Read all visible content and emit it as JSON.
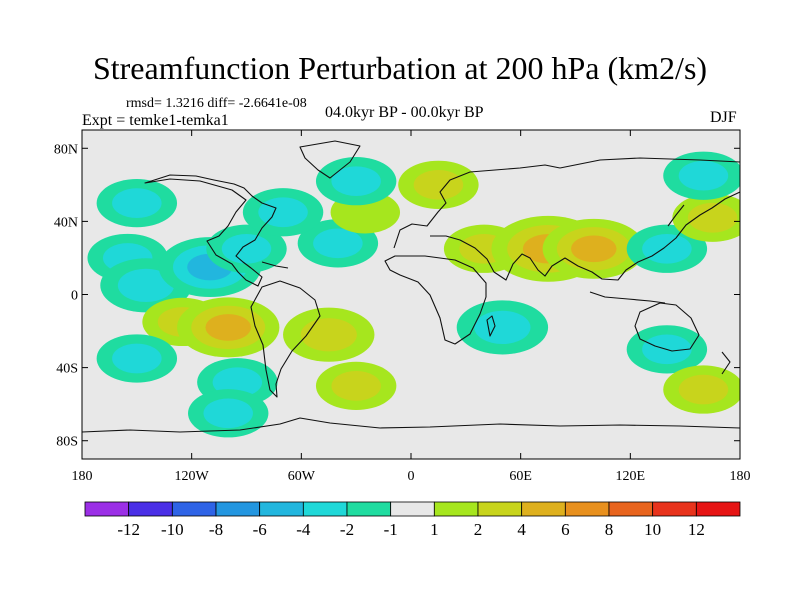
{
  "figure": {
    "title": "Streamfunction Perturbation at 200 hPa (km2/s)",
    "stats_text": "rmsd= 1.3216  diff= -2.6641e-08",
    "experiment_text": "Expt = temke1-temka1",
    "period_text": "04.0kyr BP - 00.0kyr BP",
    "season_text": "DJF"
  },
  "chart_data": {
    "type": "heatmap",
    "title": "Streamfunction Perturbation at 200 hPa (km2/s)",
    "projection": "cylindrical equidistant",
    "lon_range": [
      -180,
      180
    ],
    "lat_range": [
      -90,
      90
    ],
    "xticks": [
      {
        "value": -180,
        "label": "180"
      },
      {
        "value": -120,
        "label": "120W"
      },
      {
        "value": -60,
        "label": "60W"
      },
      {
        "value": 0,
        "label": "0"
      },
      {
        "value": 60,
        "label": "60E"
      },
      {
        "value": 120,
        "label": "120E"
      },
      {
        "value": 180,
        "label": "180"
      }
    ],
    "yticks": [
      {
        "value": 80,
        "label": "80N"
      },
      {
        "value": 40,
        "label": "40N"
      },
      {
        "value": 0,
        "label": "0"
      },
      {
        "value": -40,
        "label": "40S"
      },
      {
        "value": -80,
        "label": "80S"
      }
    ],
    "colorbar": {
      "boundary_labels": [
        "-12",
        "-10",
        "-8",
        "-6",
        "-4",
        "-2",
        "-1",
        "1",
        "2",
        "4",
        "6",
        "8",
        "10",
        "12"
      ],
      "colors": [
        "#9b2fe6",
        "#4a2fe6",
        "#2e63e6",
        "#2396e0",
        "#22b6de",
        "#1fd8d8",
        "#1fdca0",
        "#e8e8e8",
        "#a6e61e",
        "#c8d41c",
        "#deb01e",
        "#e8901e",
        "#e8641e",
        "#e8331c",
        "#e61414"
      ]
    },
    "fields": [
      {
        "lon": -150,
        "lat": 50,
        "value": -2
      },
      {
        "lon": -155,
        "lat": 20,
        "value": -2
      },
      {
        "lon": -145,
        "lat": 5,
        "value": -3
      },
      {
        "lon": -110,
        "lat": 15,
        "value": -4
      },
      {
        "lon": -90,
        "lat": 25,
        "value": -2
      },
      {
        "lon": -40,
        "lat": 28,
        "value": -2
      },
      {
        "lon": -70,
        "lat": 45,
        "value": -2
      },
      {
        "lon": -25,
        "lat": 45,
        "value": 1
      },
      {
        "lon": -30,
        "lat": 62,
        "value": -2
      },
      {
        "lon": -125,
        "lat": -15,
        "value": 2
      },
      {
        "lon": -100,
        "lat": -18,
        "value": 4
      },
      {
        "lon": -45,
        "lat": -22,
        "value": 3
      },
      {
        "lon": -150,
        "lat": -35,
        "value": -2
      },
      {
        "lon": -95,
        "lat": -48,
        "value": -2
      },
      {
        "lon": -30,
        "lat": -50,
        "value": 2
      },
      {
        "lon": -100,
        "lat": -65,
        "value": -2
      },
      {
        "lon": 15,
        "lat": 60,
        "value": 2
      },
      {
        "lon": 40,
        "lat": 25,
        "value": 2
      },
      {
        "lon": 75,
        "lat": 25,
        "value": 5
      },
      {
        "lon": 100,
        "lat": 25,
        "value": 4
      },
      {
        "lon": 50,
        "lat": -18,
        "value": -3
      },
      {
        "lon": 140,
        "lat": 25,
        "value": -2
      },
      {
        "lon": 165,
        "lat": 42,
        "value": 2
      },
      {
        "lon": 160,
        "lat": 65,
        "value": -2
      },
      {
        "lon": 140,
        "lat": -30,
        "value": -2
      },
      {
        "lon": 160,
        "lat": -52,
        "value": 2
      }
    ],
    "reference_lines": [
      "coastlines"
    ]
  }
}
